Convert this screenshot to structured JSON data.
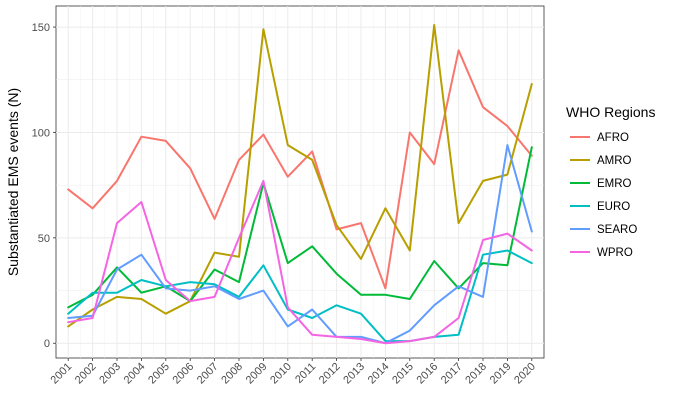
{
  "chart_data": {
    "type": "line",
    "title": "",
    "xlabel": "",
    "ylabel": "Substantiated EMS events (N)",
    "x": [
      2001,
      2002,
      2003,
      2004,
      2005,
      2006,
      2007,
      2008,
      2009,
      2010,
      2011,
      2012,
      2013,
      2014,
      2015,
      2016,
      2017,
      2018,
      2019,
      2020
    ],
    "xlim": [
      2000.5,
      2020.5
    ],
    "ylim": [
      -7,
      160
    ],
    "yticks": [
      0,
      50,
      100,
      150
    ],
    "grid": true,
    "legend": {
      "title": "WHO Regions",
      "position": "right"
    },
    "series": [
      {
        "name": "AFRO",
        "color": "#F8766D",
        "values": [
          73,
          64,
          77,
          98,
          96,
          83,
          59,
          87,
          99,
          79,
          91,
          54,
          57,
          26,
          100,
          85,
          139,
          112,
          103,
          89
        ]
      },
      {
        "name": "AMRO",
        "color": "#B79F00",
        "values": [
          8,
          16,
          22,
          21,
          14,
          20,
          43,
          41,
          149,
          94,
          87,
          56,
          40,
          64,
          44,
          151,
          57,
          77,
          80,
          123
        ]
      },
      {
        "name": "EMRO",
        "color": "#00BA38",
        "values": [
          17,
          23,
          36,
          24,
          27,
          20,
          35,
          29,
          76,
          38,
          46,
          33,
          23,
          23,
          21,
          39,
          26,
          38,
          37,
          93
        ]
      },
      {
        "name": "EURO",
        "color": "#00BFC4",
        "values": [
          14,
          24,
          24,
          30,
          27,
          29,
          28,
          22,
          37,
          16,
          12,
          18,
          14,
          1,
          1,
          3,
          4,
          42,
          44,
          38
        ]
      },
      {
        "name": "SEARO",
        "color": "#619CFF",
        "values": [
          12,
          13,
          35,
          42,
          26,
          25,
          27,
          21,
          25,
          8,
          16,
          3,
          3,
          0,
          6,
          18,
          27,
          22,
          94,
          53
        ]
      },
      {
        "name": "WPRO",
        "color": "#F564E3",
        "values": [
          10,
          12,
          57,
          67,
          30,
          20,
          22,
          50,
          77,
          17,
          4,
          3,
          2,
          0,
          1,
          3,
          12,
          49,
          52,
          44
        ]
      }
    ]
  }
}
